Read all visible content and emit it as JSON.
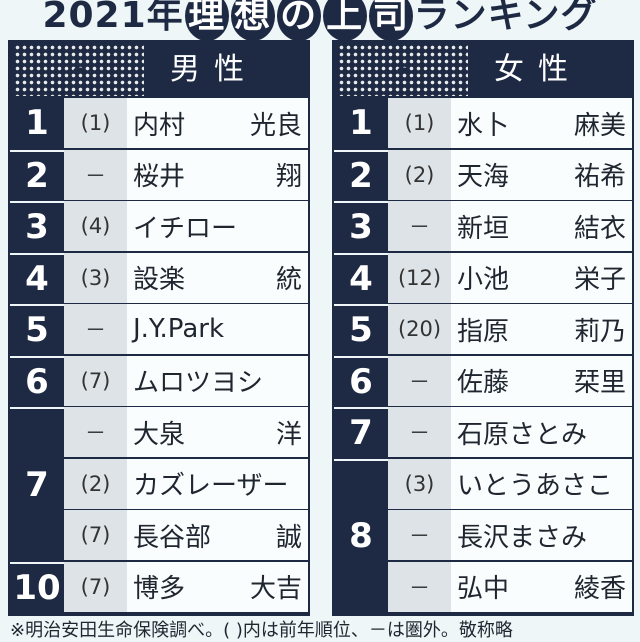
{
  "title": {
    "year": "2021年",
    "circled": [
      "理",
      "想",
      "の",
      "上",
      "司"
    ],
    "suffix": "ランキング"
  },
  "male": {
    "header": "男性",
    "rows": [
      {
        "rank": "1",
        "prev": "(1)",
        "family": "内村",
        "given": "光良"
      },
      {
        "rank": "2",
        "prev": "－",
        "family": "桜井",
        "given": "翔"
      },
      {
        "rank": "3",
        "prev": "(4)",
        "family": "イチロー",
        "given": ""
      },
      {
        "rank": "4",
        "prev": "(3)",
        "family": "設楽",
        "given": "統"
      },
      {
        "rank": "5",
        "prev": "－",
        "family": "J.Y.Park",
        "given": ""
      },
      {
        "rank": "6",
        "prev": "(7)",
        "family": "ムロツヨシ",
        "given": ""
      },
      {
        "rank": "7",
        "prev": "－",
        "family": "大泉",
        "given": "洋"
      },
      {
        "rank": "7",
        "prev": "(2)",
        "family": "カズレーザー",
        "given": ""
      },
      {
        "rank": "7",
        "prev": "(7)",
        "family": "長谷部",
        "given": "誠"
      },
      {
        "rank": "10",
        "prev": "(7)",
        "family": "博多",
        "given": "大吉"
      }
    ]
  },
  "female": {
    "header": "女性",
    "rows": [
      {
        "rank": "1",
        "prev": "(1)",
        "family": "水卜",
        "given": "麻美"
      },
      {
        "rank": "2",
        "prev": "(2)",
        "family": "天海",
        "given": "祐希"
      },
      {
        "rank": "3",
        "prev": "－",
        "family": "新垣",
        "given": "結衣"
      },
      {
        "rank": "4",
        "prev": "(12)",
        "family": "小池",
        "given": "栄子"
      },
      {
        "rank": "5",
        "prev": "(20)",
        "family": "指原",
        "given": "莉乃"
      },
      {
        "rank": "6",
        "prev": "－",
        "family": "佐藤",
        "given": "栞里"
      },
      {
        "rank": "7",
        "prev": "－",
        "family": "石原さとみ",
        "given": ""
      },
      {
        "rank": "8",
        "prev": "(3)",
        "family": "いとうあさこ",
        "given": ""
      },
      {
        "rank": "8",
        "prev": "－",
        "family": "長沢まさみ",
        "given": ""
      },
      {
        "rank": "8",
        "prev": "－",
        "family": "弘中",
        "given": "綾香"
      }
    ]
  },
  "footnote": "※明治安田生命保険調べ。(  )内は前年順位、－は圏外。敬称略",
  "colors": {
    "navy": "#1e2a44",
    "background": "#eef6f7",
    "prev_column": "#dde3e7"
  }
}
